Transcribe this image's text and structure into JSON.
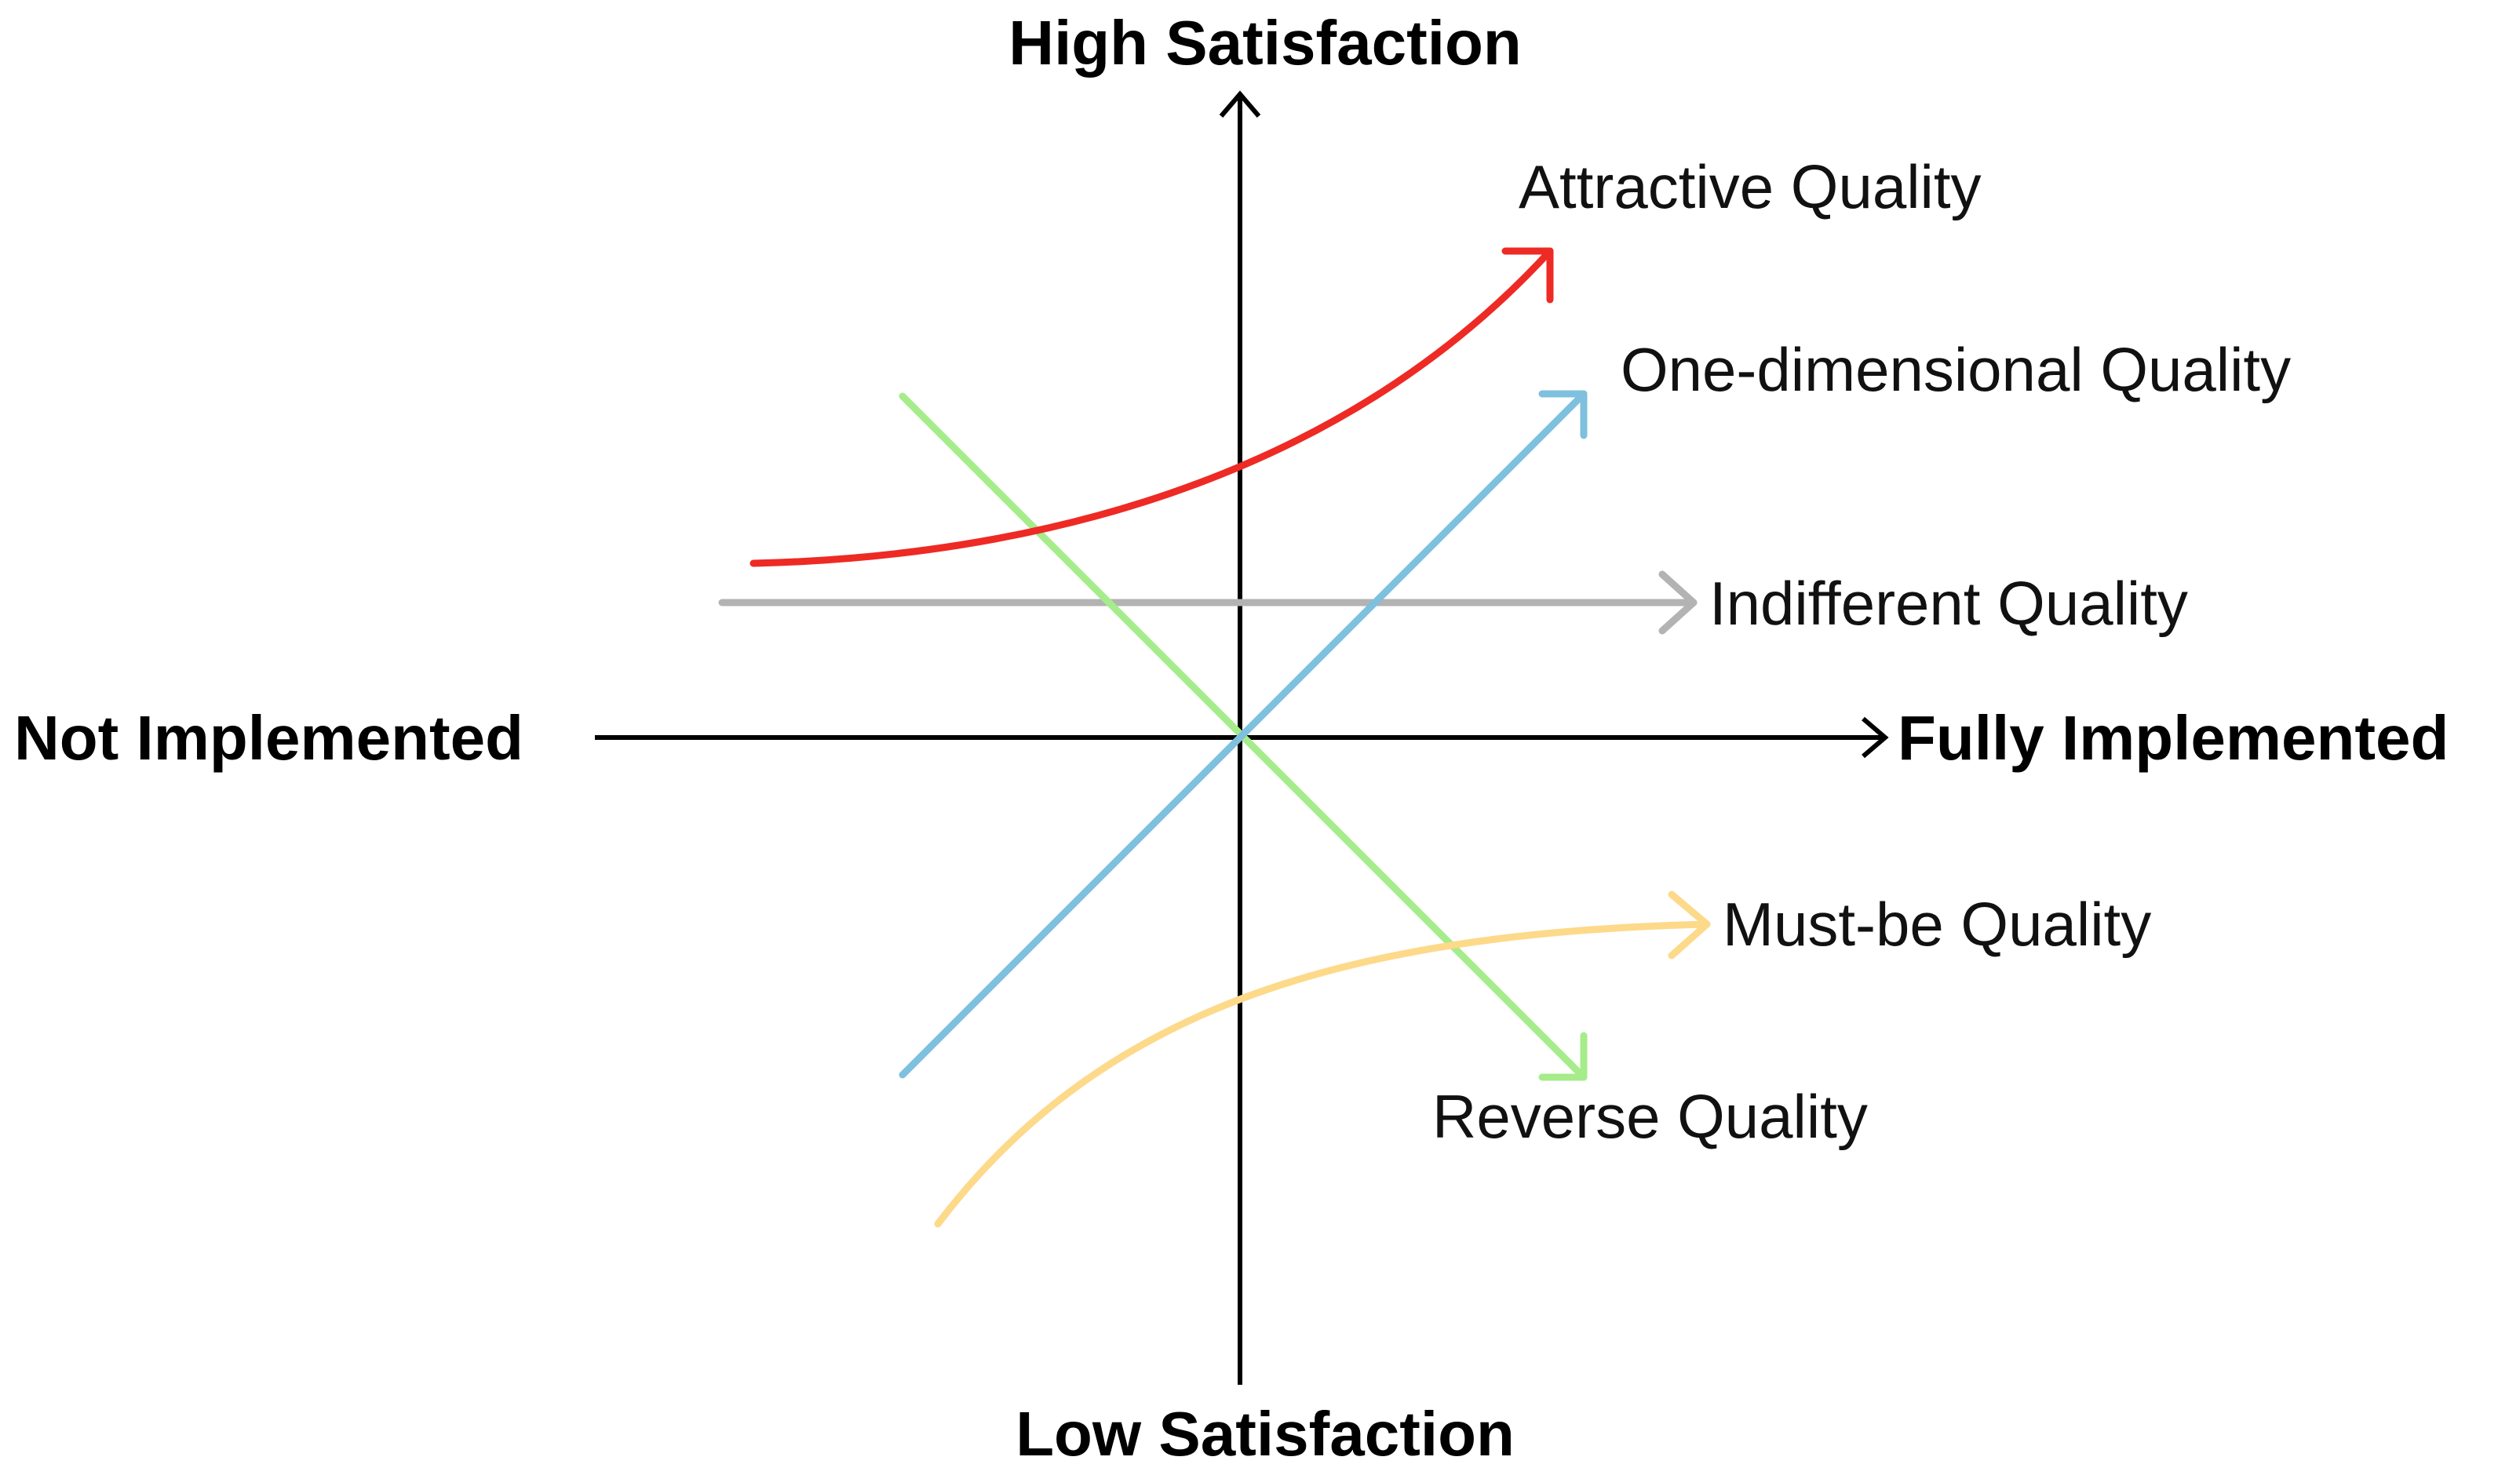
{
  "axes": {
    "top": "High Satisfaction",
    "bottom": "Low Satisfaction",
    "left": "Not Implemented",
    "right": "Fully Implemented"
  },
  "curves": [
    {
      "id": "attractive",
      "label": "Attractive Quality",
      "color": "#ee2a24"
    },
    {
      "id": "one-dimensional",
      "label": "One-dimensional Quality",
      "color": "#7ec0de"
    },
    {
      "id": "indifferent",
      "label": "Indifferent Quality",
      "color": "#b3b3b3"
    },
    {
      "id": "must-be",
      "label": "Must-be Quality",
      "color": "#fdd98a"
    },
    {
      "id": "reverse",
      "label": "Reverse Quality",
      "color": "#a6ec8a"
    }
  ]
}
